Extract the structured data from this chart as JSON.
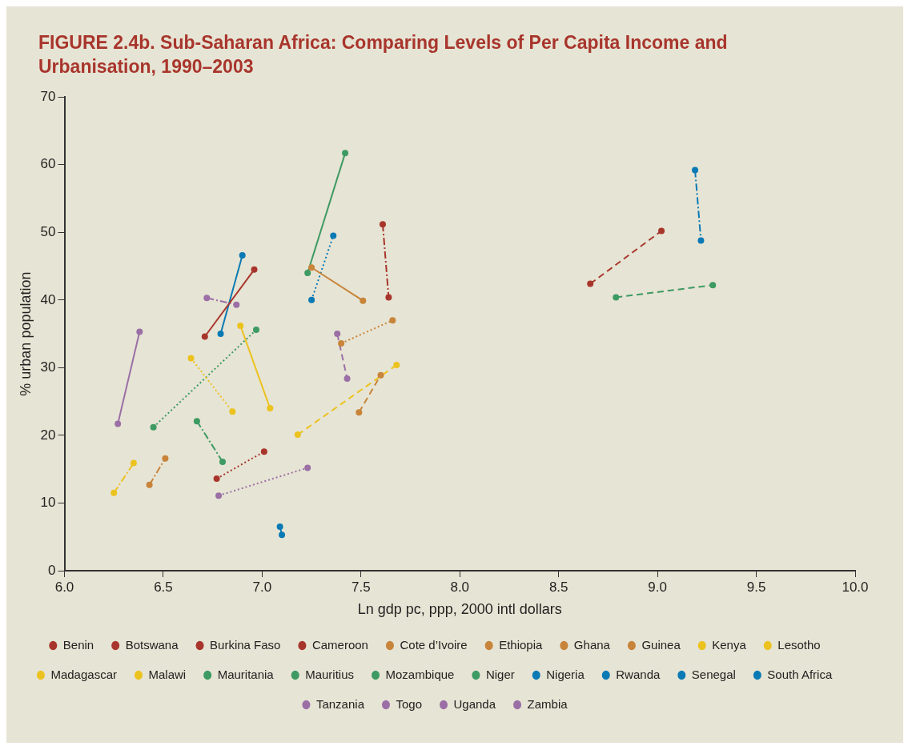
{
  "chart_data": {
    "type": "line",
    "title": "FIGURE 2.4b.  Sub-Saharan Africa: Comparing Levels of Per Capita Income and Urbanisation, 1990–2003",
    "xlabel": "Ln gdp pc, ppp, 2000 intl dollars",
    "ylabel": "% urban population",
    "xlim": [
      6,
      10
    ],
    "xticks": [
      {
        "value": 6,
        "label": "6.0"
      },
      {
        "value": 6.5,
        "label": "6.5"
      },
      {
        "value": 7,
        "label": "7.0"
      },
      {
        "value": 7.5,
        "label": "7.5"
      },
      {
        "value": 8,
        "label": "8.0"
      },
      {
        "value": 8.5,
        "label": "8.5"
      },
      {
        "value": 9,
        "label": "9.0"
      },
      {
        "value": 9.5,
        "label": "9.5"
      },
      {
        "value": 10,
        "label": "10.0"
      }
    ],
    "ylim": [
      0,
      70
    ],
    "yticks": [
      0,
      10,
      20,
      30,
      40,
      50,
      60,
      70
    ],
    "grid": false,
    "legend": "bottom",
    "marker": "circle",
    "series": [
      {
        "name": "Benin",
        "color": "#a8352c",
        "line_style": "solid",
        "x": [
          6.71,
          6.96
        ],
        "values": [
          34.6,
          44.5
        ]
      },
      {
        "name": "Botswana",
        "color": "#a8352c",
        "line_style": "dashed",
        "x": [
          8.66,
          9.02
        ],
        "values": [
          42.4,
          50.2
        ]
      },
      {
        "name": "Burkina Faso",
        "color": "#a8352c",
        "line_style": "dotted",
        "x": [
          6.77,
          7.01
        ],
        "values": [
          13.6,
          17.6
        ]
      },
      {
        "name": "Cameroon",
        "color": "#a8352c",
        "line_style": "dashdot",
        "x": [
          7.61,
          7.64
        ],
        "values": [
          51.2,
          40.4
        ]
      },
      {
        "name": "Cote d’Ivoire",
        "color": "#c8843a",
        "line_style": "solid",
        "x": [
          7.25,
          7.51
        ],
        "values": [
          44.8,
          39.9
        ]
      },
      {
        "name": "Ethiopia",
        "color": "#c8843a",
        "line_style": "dashed",
        "x": [
          7.49,
          7.6
        ],
        "values": [
          23.4,
          28.9
        ]
      },
      {
        "name": "Ghana",
        "color": "#c8843a",
        "line_style": "dotted",
        "x": [
          7.4,
          7.66
        ],
        "values": [
          33.6,
          37.0
        ]
      },
      {
        "name": "Guinea",
        "color": "#c8843a",
        "line_style": "dashdot",
        "x": [
          6.43,
          6.51
        ],
        "values": [
          12.7,
          16.6
        ]
      },
      {
        "name": "Kenya",
        "color": "#ecc21f",
        "line_style": "solid",
        "x": [
          6.89,
          7.04
        ],
        "values": [
          36.2,
          24.0
        ]
      },
      {
        "name": "Lesotho",
        "color": "#ecc21f",
        "line_style": "dashed",
        "x": [
          7.18,
          7.68
        ],
        "values": [
          20.1,
          30.4
        ]
      },
      {
        "name": "Madagascar",
        "color": "#ecc21f",
        "line_style": "dotted",
        "x": [
          6.64,
          6.85
        ],
        "values": [
          31.4,
          23.5
        ]
      },
      {
        "name": "Malawi",
        "color": "#ecc21f",
        "line_style": "dashdot",
        "x": [
          6.25,
          6.35
        ],
        "values": [
          11.5,
          15.9
        ]
      },
      {
        "name": "Mauritania",
        "color": "#3d9a62",
        "line_style": "solid",
        "x": [
          7.23,
          7.42
        ],
        "values": [
          44.0,
          61.7
        ]
      },
      {
        "name": "Mauritius",
        "color": "#3d9a62",
        "line_style": "dashed",
        "x": [
          8.79,
          9.28
        ],
        "values": [
          40.4,
          42.2
        ]
      },
      {
        "name": "Mozambique",
        "color": "#3d9a62",
        "line_style": "dotted",
        "x": [
          6.45,
          6.97
        ],
        "values": [
          21.2,
          35.6
        ]
      },
      {
        "name": "Niger",
        "color": "#3d9a62",
        "line_style": "dashdot",
        "x": [
          6.67,
          6.8
        ],
        "values": [
          22.1,
          16.1
        ]
      },
      {
        "name": "Nigeria",
        "color": "#0a7ab5",
        "line_style": "solid",
        "x": [
          6.79,
          6.9
        ],
        "values": [
          35.0,
          46.6
        ]
      },
      {
        "name": "Rwanda",
        "color": "#0a7ab5",
        "line_style": "dashed",
        "x": [
          7.09,
          7.1
        ],
        "values": [
          6.5,
          5.3
        ]
      },
      {
        "name": "Senegal",
        "color": "#0a7ab5",
        "line_style": "dotted",
        "x": [
          7.25,
          7.36
        ],
        "values": [
          40.0,
          49.5
        ]
      },
      {
        "name": "South Africa",
        "color": "#0a7ab5",
        "line_style": "dashdot",
        "x": [
          9.19,
          9.22
        ],
        "values": [
          59.2,
          48.8
        ]
      },
      {
        "name": "Tanzania",
        "color": "#9b6fa6",
        "line_style": "solid",
        "x": [
          6.27,
          6.38
        ],
        "values": [
          21.7,
          35.3
        ]
      },
      {
        "name": "Togo",
        "color": "#9b6fa6",
        "line_style": "dashed",
        "x": [
          7.38,
          7.43
        ],
        "values": [
          35.0,
          28.4
        ]
      },
      {
        "name": "Uganda",
        "color": "#9b6fa6",
        "line_style": "dotted",
        "x": [
          6.78,
          7.23
        ],
        "values": [
          11.1,
          15.2
        ]
      },
      {
        "name": "Zambia",
        "color": "#9b6fa6",
        "line_style": "dashdot",
        "x": [
          6.72,
          6.87
        ],
        "values": [
          40.3,
          39.3
        ]
      }
    ]
  }
}
